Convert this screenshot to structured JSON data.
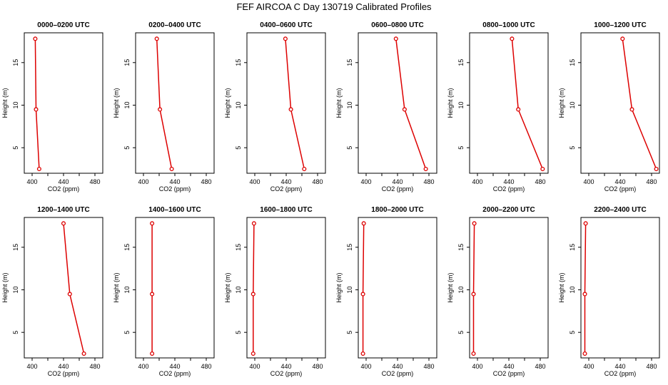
{
  "title": "FEF AIRCOA C  Day 130719  Calibrated Profiles",
  "colors": {
    "line": "#dd0000",
    "axis": "#000000",
    "background": "#ffffff"
  },
  "chart_data": [
    {
      "type": "line",
      "title": "0000–0200 UTC",
      "xlabel": "CO2 (ppm)",
      "ylabel": "Height (m)",
      "x": [
        409,
        405,
        404
      ],
      "y": [
        2.5,
        9.5,
        17.8
      ],
      "xticks": [
        "400",
        "440",
        "480"
      ],
      "yticks": [
        "5",
        "10",
        "15"
      ],
      "xlim": [
        390,
        490
      ],
      "ylim": [
        2,
        18.5
      ]
    },
    {
      "type": "line",
      "title": "0200–0400 UTC",
      "xlabel": "CO2 (ppm)",
      "ylabel": "Height (m)",
      "x": [
        436,
        421,
        417
      ],
      "y": [
        2.5,
        9.5,
        17.8
      ],
      "xticks": [
        "400",
        "440",
        "480"
      ],
      "yticks": [
        "5",
        "10",
        "15"
      ],
      "xlim": [
        390,
        490
      ],
      "ylim": [
        2,
        18.5
      ]
    },
    {
      "type": "line",
      "title": "0400–0600 UTC",
      "xlabel": "CO2 (ppm)",
      "ylabel": "Height (m)",
      "x": [
        463,
        446,
        439
      ],
      "y": [
        2.5,
        9.5,
        17.8
      ],
      "xticks": [
        "400",
        "440",
        "480"
      ],
      "yticks": [
        "5",
        "10",
        "15"
      ],
      "xlim": [
        390,
        490
      ],
      "ylim": [
        2,
        18.5
      ]
    },
    {
      "type": "line",
      "title": "0600–0800 UTC",
      "xlabel": "CO2 (ppm)",
      "ylabel": "Height (m)",
      "x": [
        476,
        449,
        438
      ],
      "y": [
        2.5,
        9.5,
        17.8
      ],
      "xticks": [
        "400",
        "440",
        "480"
      ],
      "yticks": [
        "5",
        "10",
        "15"
      ],
      "xlim": [
        390,
        490
      ],
      "ylim": [
        2,
        18.5
      ]
    },
    {
      "type": "line",
      "title": "0800–1000 UTC",
      "xlabel": "CO2 (ppm)",
      "ylabel": "Height (m)",
      "x": [
        483,
        452,
        444
      ],
      "y": [
        2.5,
        9.5,
        17.8
      ],
      "xticks": [
        "400",
        "440",
        "480"
      ],
      "yticks": [
        "5",
        "10",
        "15"
      ],
      "xlim": [
        390,
        490
      ],
      "ylim": [
        2,
        18.5
      ]
    },
    {
      "type": "line",
      "title": "1000–1200 UTC",
      "xlabel": "CO2 (ppm)",
      "ylabel": "Height (m)",
      "x": [
        486,
        455,
        443
      ],
      "y": [
        2.5,
        9.5,
        17.8
      ],
      "xticks": [
        "400",
        "440",
        "480"
      ],
      "yticks": [
        "5",
        "10",
        "15"
      ],
      "xlim": [
        390,
        490
      ],
      "ylim": [
        2,
        18.5
      ]
    },
    {
      "type": "line",
      "title": "1200–1400 UTC",
      "xlabel": "CO2 (ppm)",
      "ylabel": "Height (m)",
      "x": [
        466,
        448,
        440
      ],
      "y": [
        2.5,
        9.5,
        17.8
      ],
      "xticks": [
        "400",
        "440",
        "480"
      ],
      "yticks": [
        "5",
        "10",
        "15"
      ],
      "xlim": [
        390,
        490
      ],
      "ylim": [
        2,
        18.5
      ]
    },
    {
      "type": "line",
      "title": "1400–1600 UTC",
      "xlabel": "CO2 (ppm)",
      "ylabel": "Height (m)",
      "x": [
        411,
        411,
        411
      ],
      "y": [
        2.5,
        9.5,
        17.8
      ],
      "xticks": [
        "400",
        "440",
        "480"
      ],
      "yticks": [
        "5",
        "10",
        "15"
      ],
      "xlim": [
        390,
        490
      ],
      "ylim": [
        2,
        18.5
      ]
    },
    {
      "type": "line",
      "title": "1600–1800 UTC",
      "xlabel": "CO2 (ppm)",
      "ylabel": "Height (m)",
      "x": [
        398,
        398,
        399
      ],
      "y": [
        2.5,
        9.5,
        17.8
      ],
      "xticks": [
        "400",
        "440",
        "480"
      ],
      "yticks": [
        "5",
        "10",
        "15"
      ],
      "xlim": [
        390,
        490
      ],
      "ylim": [
        2,
        18.5
      ]
    },
    {
      "type": "line",
      "title": "1800–2000 UTC",
      "xlabel": "CO2 (ppm)",
      "ylabel": "Height (m)",
      "x": [
        396,
        396,
        397
      ],
      "y": [
        2.5,
        9.5,
        17.8
      ],
      "xticks": [
        "400",
        "440",
        "480"
      ],
      "yticks": [
        "5",
        "10",
        "15"
      ],
      "xlim": [
        390,
        490
      ],
      "ylim": [
        2,
        18.5
      ]
    },
    {
      "type": "line",
      "title": "2000–2200 UTC",
      "xlabel": "CO2 (ppm)",
      "ylabel": "Height (m)",
      "x": [
        395,
        395,
        396
      ],
      "y": [
        2.5,
        9.5,
        17.8
      ],
      "xticks": [
        "400",
        "440",
        "480"
      ],
      "yticks": [
        "5",
        "10",
        "15"
      ],
      "xlim": [
        390,
        490
      ],
      "ylim": [
        2,
        18.5
      ]
    },
    {
      "type": "line",
      "title": "2200–2400 UTC",
      "xlabel": "CO2 (ppm)",
      "ylabel": "Height (m)",
      "x": [
        395,
        395,
        396
      ],
      "y": [
        2.5,
        9.5,
        17.8
      ],
      "xticks": [
        "400",
        "440",
        "480"
      ],
      "yticks": [
        "5",
        "10",
        "15"
      ],
      "xlim": [
        390,
        490
      ],
      "ylim": [
        2,
        18.5
      ]
    }
  ]
}
